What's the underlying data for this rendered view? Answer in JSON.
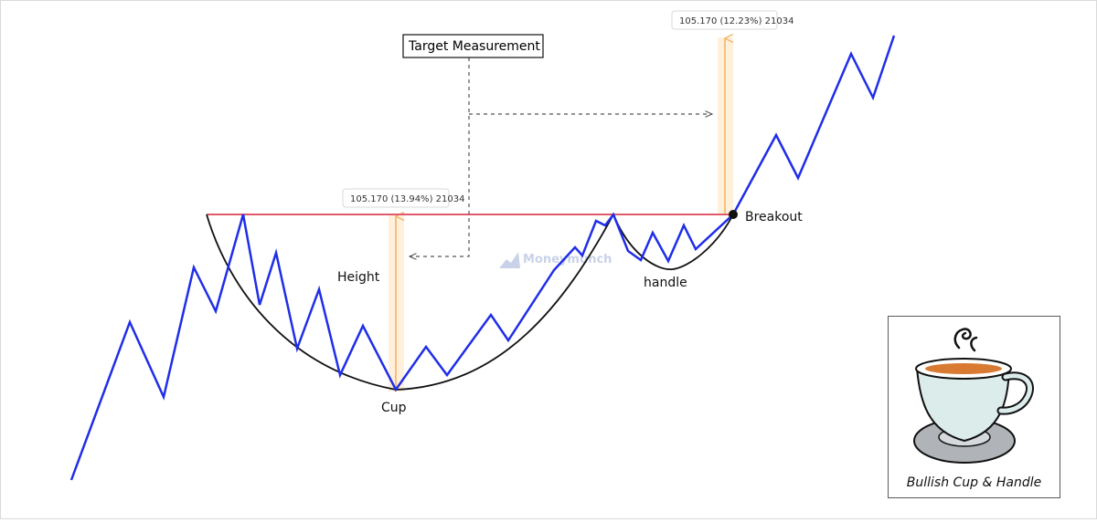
{
  "diagram": {
    "target_label": "Target Measurement",
    "height_label": "Height",
    "cup_label": "Cup",
    "handle_label": "handle",
    "breakout_label": "Breakout",
    "left_measure_text": "105.170 (13.94%) 21034",
    "right_measure_text": "105.170 (12.23%) 21034",
    "watermark_text": "Moneymunch",
    "caption": "Bullish Cup & Handle",
    "colors": {
      "price_line": "#1f2ee8",
      "resistance_line": "#e05a6b",
      "cup_curve": "#111111",
      "measure_line": "#f2b36b",
      "measure_fill": "#fff0dc",
      "watermark": "#c7d0e8"
    },
    "icons": {
      "legend_icon": "coffee-cup-icon"
    }
  }
}
